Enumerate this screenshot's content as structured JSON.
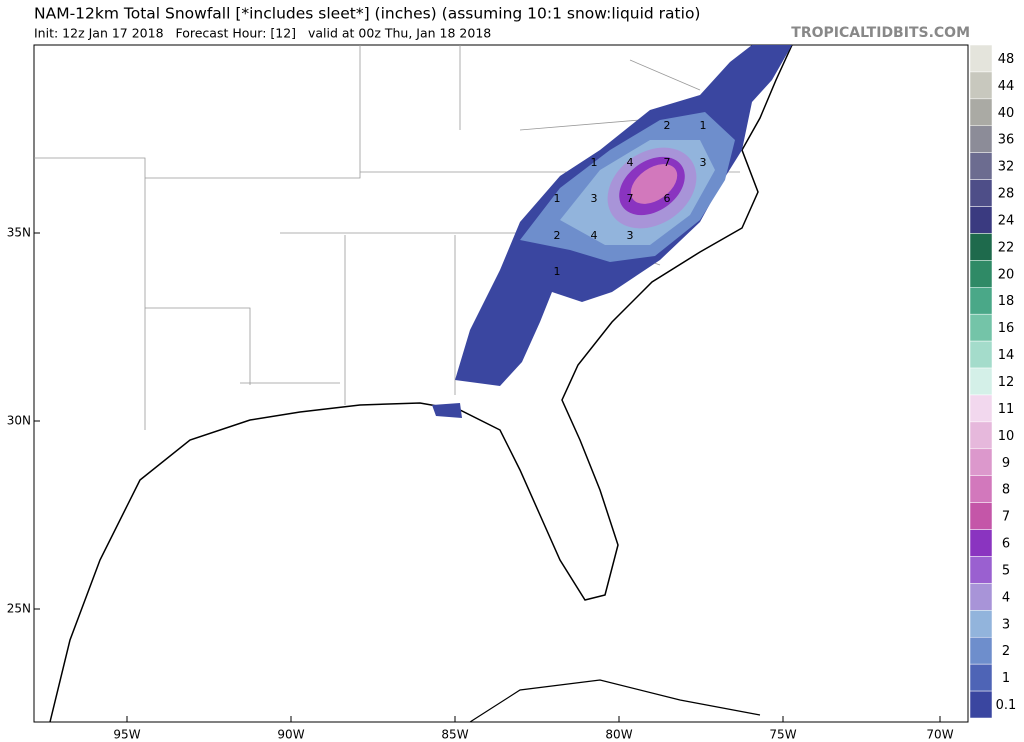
{
  "header": {
    "title": "NAM-12km Total Snowfall [*includes sleet*] (inches) (assuming 10:1 snow:liquid ratio)",
    "subtitle": "Init: 12z Jan 17 2018   Forecast Hour: [12]   valid at 00z Thu, Jan 18 2018",
    "source": "TROPICALTIDBITS.COM"
  },
  "legend": {
    "items": [
      {
        "label": "48",
        "color": "#e4e4dc"
      },
      {
        "label": "44",
        "color": "#c8c8be"
      },
      {
        "label": "40",
        "color": "#aaaaa4"
      },
      {
        "label": "36",
        "color": "#8c8c98"
      },
      {
        "label": "32",
        "color": "#6c6c90"
      },
      {
        "label": "28",
        "color": "#4e4e88"
      },
      {
        "label": "24",
        "color": "#3a3a80"
      },
      {
        "label": "22",
        "color": "#1e6a4c"
      },
      {
        "label": "20",
        "color": "#2f8a66"
      },
      {
        "label": "18",
        "color": "#4aa888"
      },
      {
        "label": "16",
        "color": "#74c4a8"
      },
      {
        "label": "14",
        "color": "#a4dccb"
      },
      {
        "label": "12",
        "color": "#d4f0e8"
      },
      {
        "label": "11",
        "color": "#f2d8ee"
      },
      {
        "label": "10",
        "color": "#e6b8dc"
      },
      {
        "label": "9",
        "color": "#dc98cc"
      },
      {
        "label": "8",
        "color": "#d278bc"
      },
      {
        "label": "7",
        "color": "#c456a8"
      },
      {
        "label": "6",
        "color": "#8a34c0"
      },
      {
        "label": "5",
        "color": "#9a60d0"
      },
      {
        "label": "4",
        "color": "#a894d8"
      },
      {
        "label": "3",
        "color": "#92b4dc"
      },
      {
        "label": "2",
        "color": "#6e8ecc"
      },
      {
        "label": "1",
        "color": "#4e64b6"
      },
      {
        "label": "0.1",
        "color": "#3a46a0"
      }
    ]
  },
  "axes": {
    "latitude": [
      "35N",
      "30N",
      "25N"
    ],
    "longitude": [
      "95W",
      "90W",
      "85W",
      "80W",
      "75W",
      "70W"
    ]
  },
  "contour_labels": [
    "2",
    "1",
    "1",
    "4",
    "7",
    "3",
    "1",
    "3",
    "7",
    "6",
    "2",
    "4",
    "3",
    "1"
  ]
}
